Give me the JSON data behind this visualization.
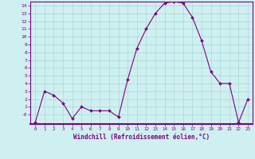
{
  "hours": [
    0,
    1,
    2,
    3,
    4,
    5,
    6,
    7,
    8,
    9,
    10,
    11,
    12,
    13,
    14,
    15,
    16,
    17,
    18,
    19,
    20,
    21,
    22,
    23
  ],
  "values": [
    -1,
    3,
    2.5,
    1.5,
    -0.5,
    1,
    0.5,
    0.5,
    0.5,
    -0.3,
    4.5,
    8.5,
    11,
    13,
    14.3,
    14.5,
    14.3,
    12.5,
    9.5,
    5.5,
    4,
    4,
    -1,
    2
  ],
  "line_color": "#800080",
  "marker_color": "#800080",
  "bg_color": "#cff0f0",
  "grid_color": "#a8d8d8",
  "axis_color": "#800080",
  "xlabel": "Windchill (Refroidissement éolien,°C)",
  "ylim_min": -1.2,
  "ylim_max": 14.5,
  "xlim_min": -0.5,
  "xlim_max": 23.5,
  "yticks": [
    0,
    1,
    2,
    3,
    4,
    5,
    6,
    7,
    8,
    9,
    10,
    11,
    12,
    13,
    14
  ],
  "ytick_labels": [
    "-0",
    "1",
    "2",
    "3",
    "4",
    "5",
    "6",
    "7",
    "8",
    "9",
    "10",
    "11",
    "12",
    "13",
    "14"
  ],
  "xticks": [
    0,
    1,
    2,
    3,
    4,
    5,
    6,
    7,
    8,
    9,
    10,
    11,
    12,
    13,
    14,
    15,
    16,
    17,
    18,
    19,
    20,
    21,
    22,
    23
  ]
}
